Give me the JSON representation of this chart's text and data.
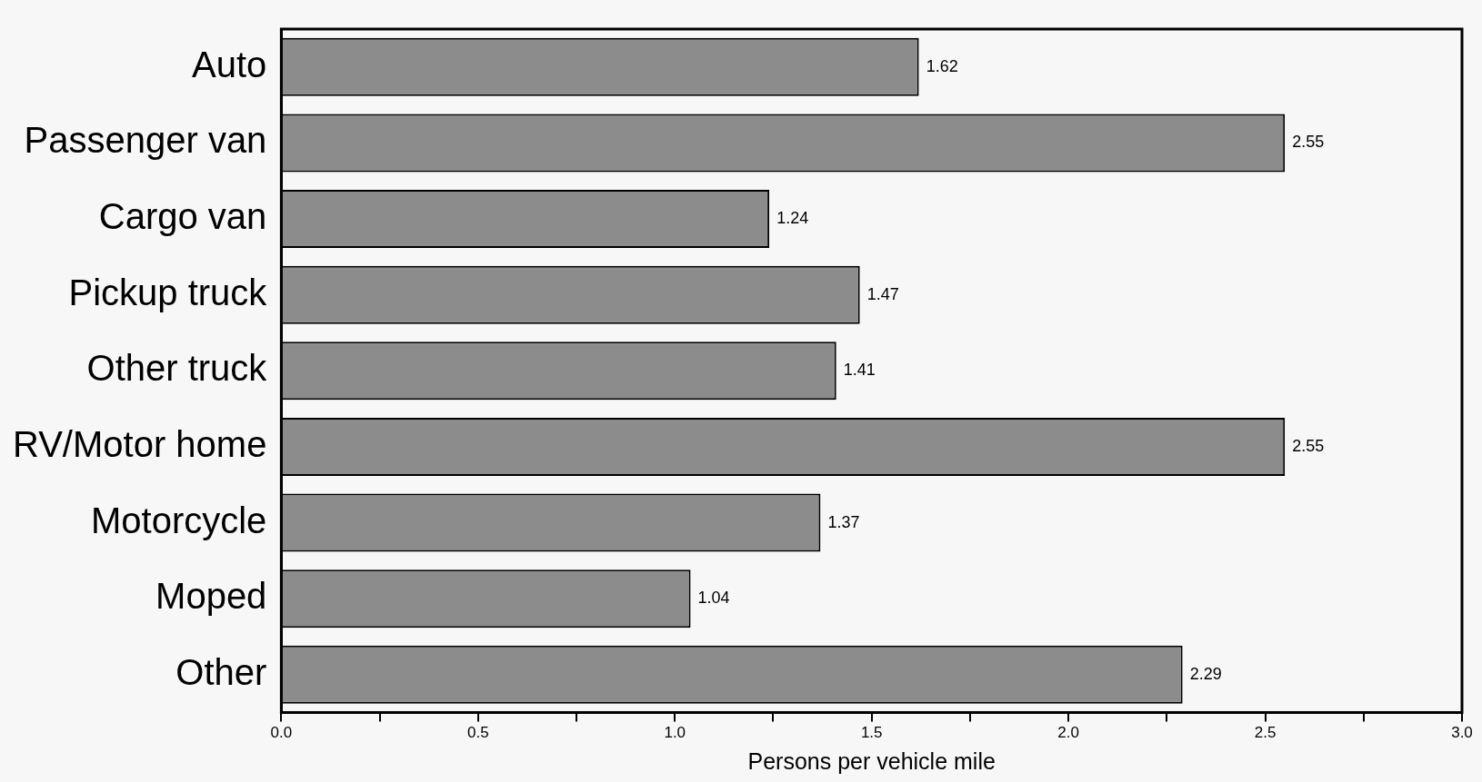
{
  "chart_data": {
    "type": "bar",
    "orientation": "horizontal",
    "xlabel": "Persons per vehicle mile",
    "categories": [
      "Auto",
      "Passenger van",
      "Cargo van",
      "Pickup truck",
      "Other truck",
      "RV/Motor home",
      "Motorcycle",
      "Moped",
      "Other"
    ],
    "values": [
      1.62,
      2.55,
      1.24,
      1.47,
      1.41,
      2.55,
      1.37,
      1.04,
      2.29
    ],
    "color": "#8c8c8c",
    "data_labels": true,
    "legend": false,
    "xlim": [
      0,
      3
    ],
    "xticks": [
      {
        "value": 0,
        "label": "0.0"
      },
      {
        "value": 0.25,
        "label": null
      },
      {
        "value": 0.5,
        "label": "0.5"
      },
      {
        "value": 0.75,
        "label": null
      },
      {
        "value": 1,
        "label": "1.0"
      },
      {
        "value": 1.25,
        "label": null
      },
      {
        "value": 1.5,
        "label": "1.5"
      },
      {
        "value": 1.75,
        "label": null
      },
      {
        "value": 2,
        "label": "2.0"
      },
      {
        "value": 2.25,
        "label": null
      },
      {
        "value": 2.5,
        "label": "2.5"
      },
      {
        "value": 2.75,
        "label": null
      },
      {
        "value": 3,
        "label": "3.0"
      }
    ]
  }
}
